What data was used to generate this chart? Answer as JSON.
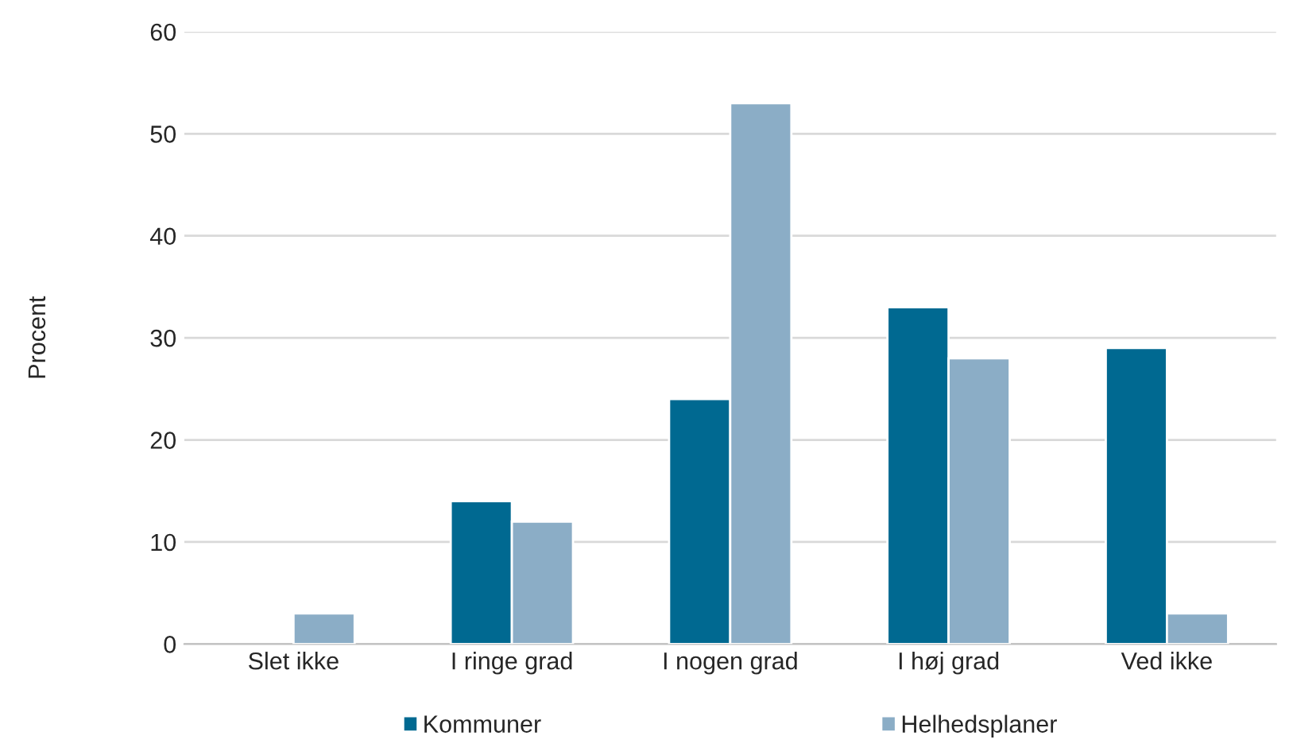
{
  "chart_data": {
    "type": "bar",
    "ylabel": "Procent",
    "categories": [
      "Slet ikke",
      "I ringe grad",
      "I nogen grad",
      "I høj grad",
      "Ved ikke"
    ],
    "series": [
      {
        "name": "Kommuner",
        "color": "#006991",
        "values": [
          null,
          14,
          24,
          33,
          29
        ]
      },
      {
        "name": "Helhedsplaner",
        "color": "#8badc6",
        "values": [
          3,
          12,
          53,
          28,
          3
        ]
      }
    ],
    "ylim": [
      0,
      60
    ],
    "yticks": [
      0,
      10,
      20,
      30,
      40,
      50,
      60
    ],
    "grid": "y",
    "legend": "bottom"
  }
}
